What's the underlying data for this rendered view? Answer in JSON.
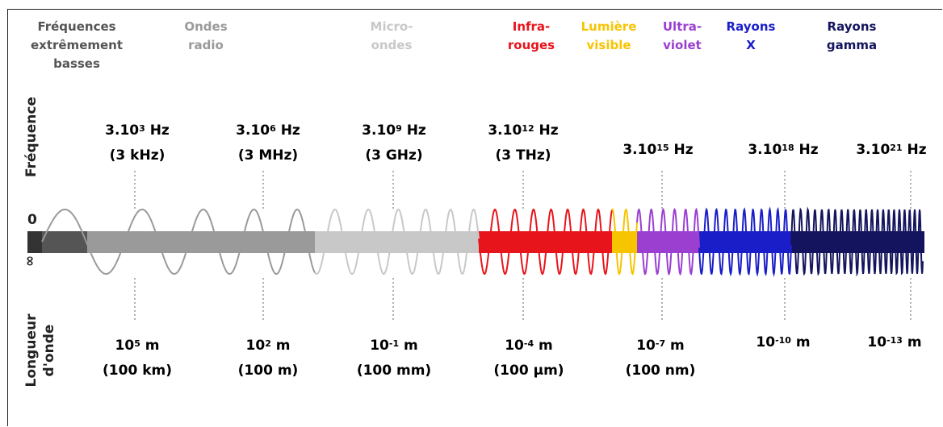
{
  "labels": {
    "frequency_axis": "Fréquence",
    "wavelength_axis": "Longueur\nd'onde",
    "zero": "0",
    "infinity": "∞"
  },
  "bands": [
    {
      "label": "Fréquences\nextrêmement\nbasses",
      "color": "#555555"
    },
    {
      "label": "Ondes\nradio",
      "color": "#9a9a9a"
    },
    {
      "label": "Micro-\nondes",
      "color": "#c8c8c8"
    },
    {
      "label": "Infra-\nrouges",
      "color": "#e8141b"
    },
    {
      "label": "Lumière\nvisible",
      "color": "#f7c400"
    },
    {
      "label": "Ultra-\nviolet",
      "color": "#9b3fd1"
    },
    {
      "label": "Rayons\nX",
      "color": "#1a1ec8"
    },
    {
      "label": "Rayons\ngamma",
      "color": "#14145e"
    }
  ],
  "frequencies": [
    {
      "base": "3.10",
      "exp": "3",
      "unit": " Hz",
      "sub": "(3 kHz)",
      "color": "#9a9a9a"
    },
    {
      "base": "3.10",
      "exp": "6",
      "unit": " Hz",
      "sub": "(3 MHz)",
      "color": "#9a9a9a"
    },
    {
      "base": "3.10",
      "exp": "9",
      "unit": " Hz",
      "sub": "(3 GHz)",
      "color": "#cfcfcf"
    },
    {
      "base": "3.10",
      "exp": "12",
      "unit": " Hz",
      "sub": "(3 THz)",
      "color": "#e8141b"
    },
    {
      "base": "3.10",
      "exp": "15",
      "unit": " Hz",
      "sub": "",
      "color": "#9b3fd1"
    },
    {
      "base": "3.10",
      "exp": "18",
      "unit": " Hz",
      "sub": "",
      "color": "#1a1ec8"
    },
    {
      "base": "3.10",
      "exp": "21",
      "unit": " Hz",
      "sub": "",
      "color": "#14145e"
    }
  ],
  "wavelengths": [
    {
      "base": "10",
      "exp": "5",
      "unit": " m",
      "sub": "(100 km)",
      "color": "#9a9a9a"
    },
    {
      "base": "10",
      "exp": "2",
      "unit": " m",
      "sub": "(100 m)",
      "color": "#9a9a9a"
    },
    {
      "base": "10",
      "exp": "-1",
      "unit": " m",
      "sub": "(100 mm)",
      "color": "#cfcfcf"
    },
    {
      "base": "10",
      "exp": "-4",
      "unit": " m",
      "sub": "(100 µm)",
      "color": "#e8141b"
    },
    {
      "base": "10",
      "exp": "-7",
      "unit": " m",
      "sub": "(100 nm)",
      "color": "#9b3fd1"
    },
    {
      "base": "10",
      "exp": "-10",
      "unit": " m",
      "sub": "",
      "color": "#1a1ec8"
    },
    {
      "base": "10",
      "exp": "-13",
      "unit": " m",
      "sub": "",
      "color": "#14145e"
    }
  ]
}
